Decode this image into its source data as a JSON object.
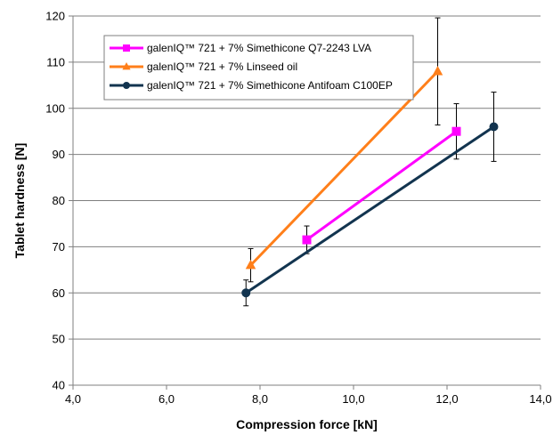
{
  "chart_data": {
    "type": "line",
    "xlabel": "Compression force [kN]",
    "ylabel": "Tablet  hardness  [N]",
    "xlim": [
      4,
      14
    ],
    "ylim": [
      40,
      120
    ],
    "x_ticks": [
      4,
      6,
      8,
      10,
      12,
      14
    ],
    "x_tick_labels": [
      "4,0",
      "6,0",
      "8,0",
      "10,0",
      "12,0",
      "14,0"
    ],
    "y_ticks": [
      40,
      50,
      60,
      70,
      80,
      90,
      100,
      110,
      120
    ],
    "y_tick_labels": [
      "40",
      "50",
      "60",
      "70",
      "80",
      "90",
      "100",
      "110",
      "120"
    ],
    "grid": "horizontal",
    "legend_position": "top-left",
    "series": [
      {
        "name": "galenIQ™ 721 + 7% Simethicone Q7-2243 LVA",
        "color": "#ff00ff",
        "marker": "square",
        "points": [
          {
            "x": 9.0,
            "y": 71.5,
            "err": 3.0
          },
          {
            "x": 12.2,
            "y": 95.0,
            "err": 6.0
          }
        ]
      },
      {
        "name": "galenIQ™ 721 + 7% Linseed oil",
        "color": "#ff7f1a",
        "marker": "triangle",
        "points": [
          {
            "x": 7.8,
            "y": 66.0,
            "err": 3.6
          },
          {
            "x": 11.8,
            "y": 108.0,
            "err": 11.6
          }
        ]
      },
      {
        "name": "galenIQ™ 721 + 7% Simethicone Antifoam C100EP",
        "color": "#12344f",
        "marker": "circle",
        "points": [
          {
            "x": 7.7,
            "y": 60.0,
            "err": 2.8
          },
          {
            "x": 13.0,
            "y": 96.0,
            "err": 7.5
          }
        ]
      }
    ]
  }
}
